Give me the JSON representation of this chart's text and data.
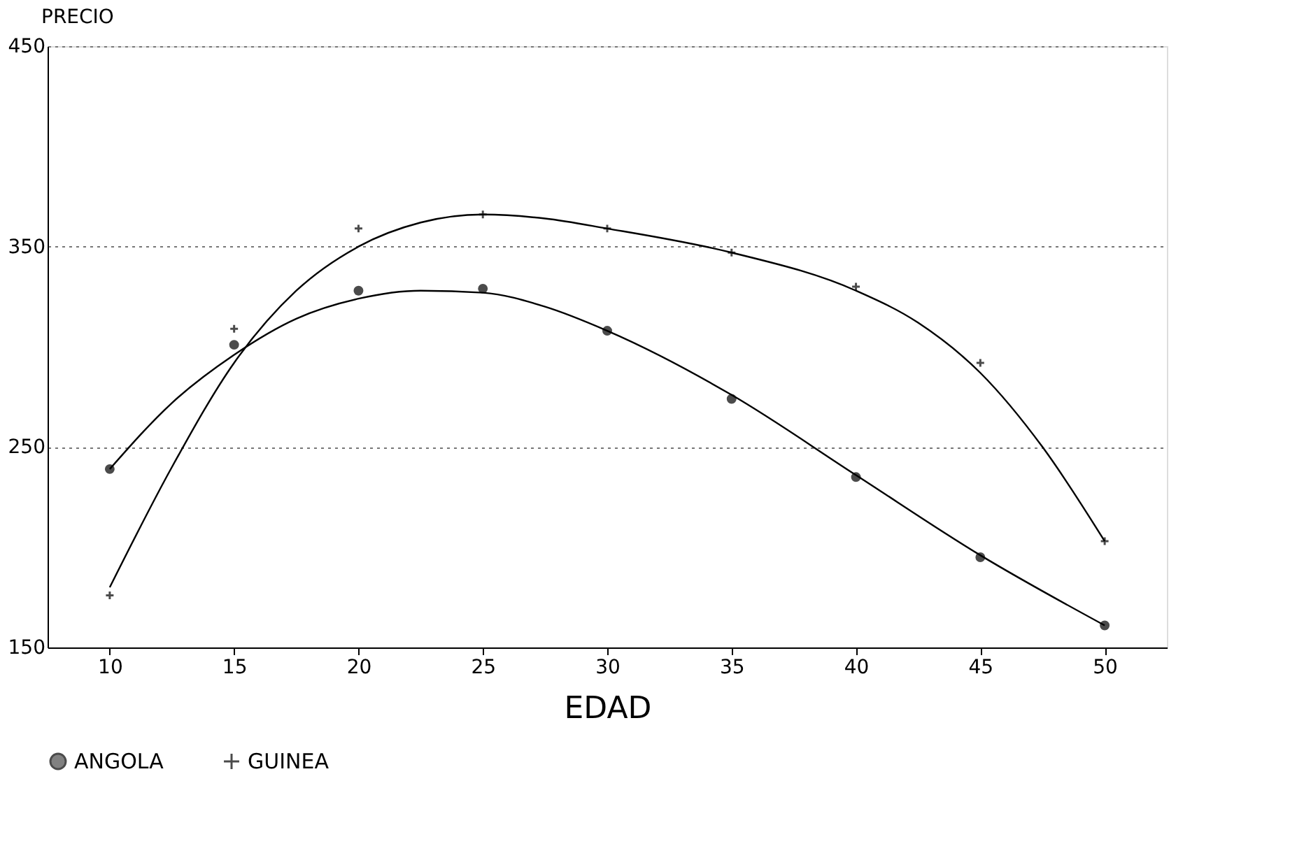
{
  "chart_data": {
    "type": "scatter",
    "xlabel": "EDAD",
    "ylabel": "PRECIO",
    "xlim": [
      7.5,
      52.5
    ],
    "xticks": [
      10,
      15,
      20,
      25,
      30,
      35,
      40,
      45,
      50
    ],
    "ylim": [
      150,
      450
    ],
    "yticks": [
      150,
      250,
      350,
      450
    ],
    "grid": "y",
    "legend": "bottom",
    "x": [
      10,
      15,
      20,
      25,
      30,
      35,
      40,
      45,
      50
    ],
    "series": [
      {
        "name": "ANGOLA",
        "color": "#000000",
        "marker": "circle",
        "values": [
          239,
          301,
          328,
          329,
          308,
          274,
          235,
          195,
          161
        ]
      },
      {
        "name": "GUINEA",
        "color": "#000000",
        "marker": "cross",
        "values": [
          176,
          309,
          359,
          366,
          359,
          347,
          330,
          292,
          203
        ]
      },
      {
        "type": "line",
        "color": "#000000",
        "line_style": "solid",
        "x": [
          10,
          12.5,
          15,
          17.5,
          20,
          22.5,
          25,
          27.5,
          30,
          35,
          40,
          45,
          50
        ],
        "values": [
          239,
          272,
          296,
          314,
          324,
          328,
          327,
          320,
          308,
          276,
          236,
          196,
          161
        ]
      },
      {
        "type": "line",
        "color": "#000000",
        "line_style": "solid",
        "x": [
          10,
          12.5,
          15,
          17.5,
          20,
          22.5,
          25,
          27.5,
          30,
          35,
          40,
          42.5,
          45,
          47.5,
          50
        ],
        "values": [
          180,
          240,
          292,
          328,
          350,
          362,
          366,
          364,
          359,
          347,
          328,
          312,
          287,
          250,
          203
        ]
      }
    ]
  }
}
